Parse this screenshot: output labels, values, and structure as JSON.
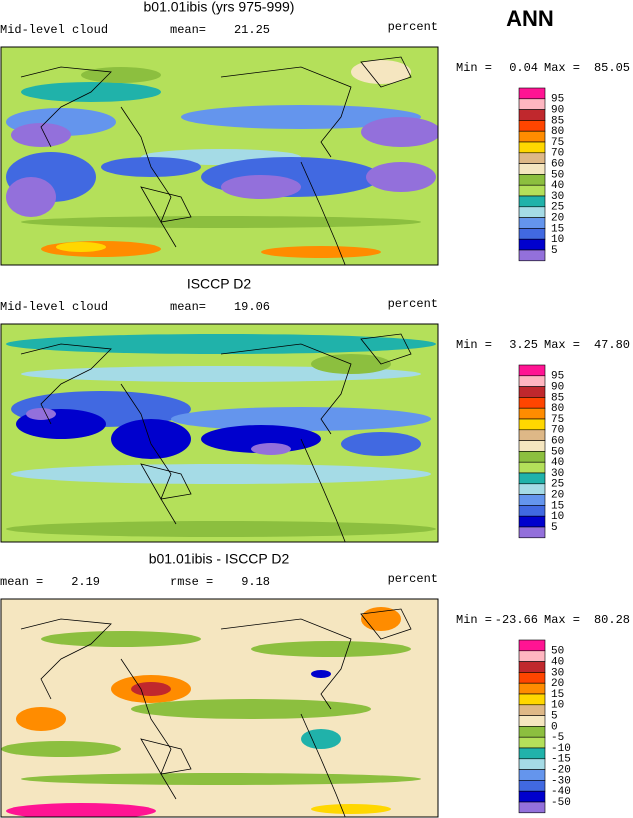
{
  "header": {
    "season": "ANN"
  },
  "panels": [
    {
      "title": "b01.01ibis (yrs 975-999)",
      "left_label": "Mid-level cloud",
      "stats": [
        {
          "label": "mean=",
          "value": "21.25"
        }
      ],
      "units": "percent",
      "min_label": "Min =",
      "min": "0.04",
      "max_label": "Max =",
      "max": "85.05",
      "levels": [
        "95",
        "90",
        "85",
        "80",
        "75",
        "70",
        "60",
        "50",
        "40",
        "30",
        "25",
        "20",
        "15",
        "10",
        "5"
      ]
    },
    {
      "title": "ISCCP D2",
      "left_label": "Mid-level cloud",
      "stats": [
        {
          "label": "mean=",
          "value": "19.06"
        }
      ],
      "units": "percent",
      "min_label": "Min =",
      "min": "3.25",
      "max_label": "Max =",
      "max": "47.80",
      "levels": [
        "95",
        "90",
        "85",
        "80",
        "75",
        "70",
        "60",
        "50",
        "40",
        "30",
        "25",
        "20",
        "15",
        "10",
        "5"
      ]
    },
    {
      "title": "b01.01ibis - ISCCP D2",
      "stats": [
        {
          "label": "mean =",
          "value": "2.19"
        },
        {
          "label": "rmse =",
          "value": "9.18"
        }
      ],
      "units": "percent",
      "min_label": "Min =",
      "min": "-23.66",
      "max_label": "Max =",
      "max": "80.28",
      "levels": [
        "50",
        "40",
        "30",
        "20",
        "15",
        "10",
        "5",
        "0",
        "-5",
        "-10",
        "-15",
        "-20",
        "-30",
        "-40",
        "-50"
      ]
    }
  ]
}
